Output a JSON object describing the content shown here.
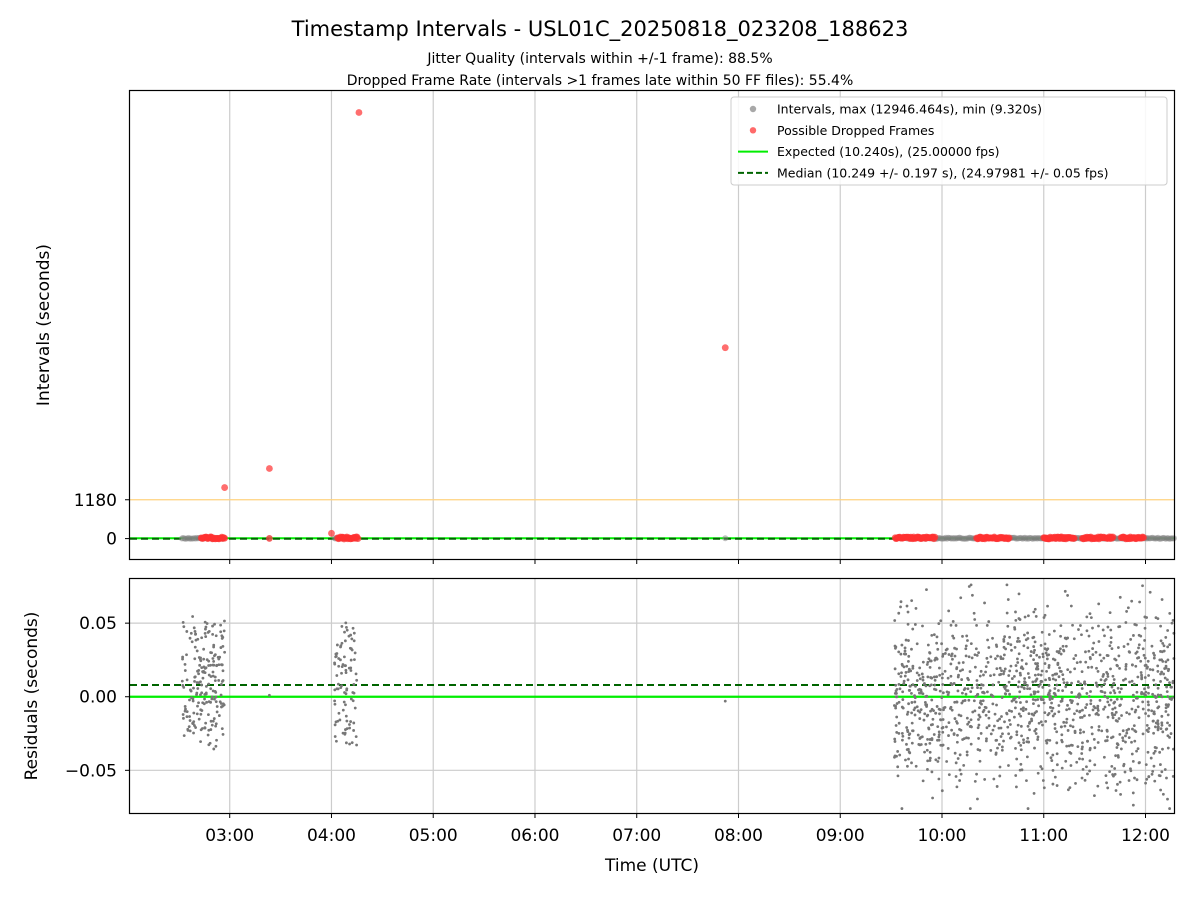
{
  "figure": {
    "title": "Timestamp Intervals - USL01C_20250818_023208_188623",
    "subtitle_1": "Jitter Quality (intervals within +/-1 frame): 88.5%",
    "subtitle_2": "Dropped Frame Rate (intervals >1 frames late within 50 FF files): 55.4%"
  },
  "chart_data": [
    {
      "type": "scatter",
      "panel": "intervals",
      "ylabel": "Intervals (seconds)",
      "yticks": [
        0,
        1180
      ],
      "ylim": [
        -620,
        13600
      ],
      "x_axis": "time of day (UTC), hours",
      "xlim": [
        2.02,
        12.28
      ],
      "xticks_hidden": true,
      "grid": "vertical at x ticks",
      "threshold_line": {
        "y": 1180,
        "color": "#ffd27f"
      },
      "expected_line": {
        "y": 10.24,
        "color": "#00ee00"
      },
      "median_line": {
        "y": 10.249,
        "color": "#006400",
        "style": "dashed"
      },
      "legend": {
        "placement": "top-right",
        "entries": [
          {
            "label": "Intervals, max (12946.464s), min (9.320s)",
            "kind": "dot",
            "color": "#999999"
          },
          {
            "label": "Possible Dropped Frames",
            "kind": "dot",
            "color": "#ff5050"
          },
          {
            "label": "Expected (10.240s), (25.00000 fps)",
            "kind": "line",
            "color": "#00ee00"
          },
          {
            "label": "Median (10.249 +/- 0.197 s), (24.97981 +/- 0.05 fps)",
            "kind": "dashed",
            "color": "#006400"
          }
        ]
      },
      "interval_clusters": [
        {
          "x_start": 2.53,
          "x_end": 2.93,
          "y": 10.25
        },
        {
          "x_start": 4.03,
          "x_end": 4.25,
          "y": 10.25
        },
        {
          "x_start": 9.55,
          "x_end": 12.28,
          "y": 10.25
        }
      ],
      "isolated_interval_points": [
        {
          "x": 3.39,
          "y": 10.3
        },
        {
          "x": 7.87,
          "y": 10.3
        }
      ],
      "dropped_frame_outliers": [
        {
          "x": 2.95,
          "y": 1550
        },
        {
          "x": 3.39,
          "y": 2130
        },
        {
          "x": 4.0,
          "y": 160
        },
        {
          "x": 4.27,
          "y": 12946
        },
        {
          "x": 7.87,
          "y": 5800
        },
        {
          "x": 3.39,
          "y": 5
        }
      ],
      "dropped_frame_clusters": [
        {
          "x_start": 2.72,
          "x_end": 2.95,
          "y": 20
        },
        {
          "x_start": 4.06,
          "x_end": 4.26,
          "y": 20
        },
        {
          "x_start": 9.54,
          "x_end": 9.93,
          "y": 20
        },
        {
          "x_start": 10.34,
          "x_end": 10.66,
          "y": 20
        },
        {
          "x_start": 11.0,
          "x_end": 11.3,
          "y": 20
        },
        {
          "x_start": 11.38,
          "x_end": 11.68,
          "y": 20
        },
        {
          "x_start": 11.76,
          "x_end": 11.98,
          "y": 20
        }
      ]
    },
    {
      "type": "scatter",
      "panel": "residuals",
      "ylabel": "Residuals (seconds)",
      "xlabel": "Time (UTC)",
      "xlim": [
        2.02,
        12.28
      ],
      "ylim": [
        -0.079,
        0.08
      ],
      "yticks": [
        0.05,
        0.0,
        -0.05
      ],
      "ytick_labels": [
        "0.05",
        "0.00",
        "−0.05"
      ],
      "xticks": [
        3,
        4,
        5,
        6,
        7,
        8,
        9,
        10,
        11,
        12
      ],
      "xtick_labels": [
        "03:00",
        "04:00",
        "05:00",
        "06:00",
        "07:00",
        "08:00",
        "09:00",
        "10:00",
        "11:00",
        "12:00"
      ],
      "grid": "both axes",
      "zero_line": {
        "y": 0.0,
        "color": "#00ee00"
      },
      "median_residual_line": {
        "y": 0.008,
        "color": "#006400",
        "style": "dashed"
      },
      "point_color": "#777777",
      "residual_clusters": [
        {
          "x_start": 2.53,
          "x_end": 2.95,
          "count": 200,
          "levels": [
            0.02,
            0.0,
            -0.02,
            0.04
          ]
        },
        {
          "x_start": 4.03,
          "x_end": 4.25,
          "count": 90,
          "levels": [
            0.02,
            0.0,
            -0.02,
            0.04
          ]
        },
        {
          "x_start": 9.53,
          "x_end": 12.28,
          "count": 1300,
          "levels": [
            0.02,
            0.0,
            -0.02
          ]
        }
      ],
      "isolated_residuals": [
        {
          "x": 3.39,
          "y": 0.001
        },
        {
          "x": 7.87,
          "y": -0.003
        }
      ]
    }
  ]
}
